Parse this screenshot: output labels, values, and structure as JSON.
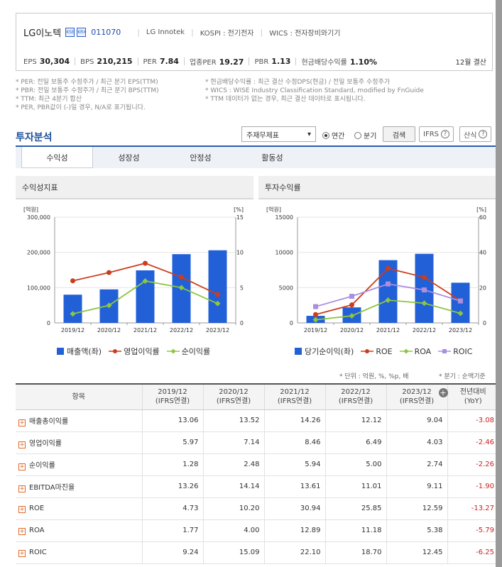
{
  "company": {
    "name": "LG이노텍",
    "badges": [
      "KSE",
      "KRX"
    ],
    "code": "011070",
    "name_en": "LG Innotek",
    "market": "KOSPI : 전기전자",
    "wics": "WICS : 전자장비와기기"
  },
  "metrics": [
    {
      "label": "EPS",
      "value": "30,304"
    },
    {
      "label": "BPS",
      "value": "210,215"
    },
    {
      "label": "PER",
      "value": "7.84"
    },
    {
      "label": "업종PER",
      "value": "19.27"
    },
    {
      "label": "PBR",
      "value": "1.13"
    },
    {
      "label": "현금배당수익률",
      "value": "1.10%"
    }
  ],
  "fiscal": "12월 결산",
  "notes_left": [
    "* PER: 전일 보통주 수정주가 / 최근 분기 EPS(TTM)",
    "* PBR: 전일 보통주 수정주가 / 최근 분기 BPS(TTM)",
    "* TTM: 최근 4분기 합산",
    "* PER, PBR값이 (-)일 경우, N/A로 표기됩니다."
  ],
  "notes_right": [
    "* 현금배당수익률 : 최근 결산 수정DPS(현금) / 전일 보통주 수정주가",
    "* WICS : WISE Industry Classification Standard, modified by FnGuide",
    "* TTM 데이터가 없는 경우, 최근 결산 데이터로 표시됩니다."
  ],
  "analysis": {
    "title": "투자분석",
    "select": "주재무제표",
    "radio_annual": "연간",
    "radio_quarter": "분기",
    "search": "검색",
    "ifrs": "IFRS",
    "formula": "산식"
  },
  "tabs": [
    "수익성",
    "성장성",
    "안정성",
    "활동성"
  ],
  "colors": {
    "bar": "#2260d8",
    "red": "#cc3d1c",
    "green": "#8dc63f",
    "purple": "#a98fe0",
    "accent": "#2d5cad"
  },
  "chart_left_title": "수익성지표",
  "chart_right_title": "투자수익률",
  "chart_data": [
    {
      "type": "bar",
      "categories": [
        "2019/12",
        "2020/12",
        "2021/12",
        "2022/12",
        "2023/12"
      ],
      "y_unit_left": "[억원]",
      "y_unit_right": "[%]",
      "y_ticks_left": [
        "300,000",
        "200,000",
        "100,000",
        "0"
      ],
      "y_ticks_right": [
        "15",
        "10",
        "5",
        "0"
      ],
      "ylim_left": [
        0,
        300000
      ],
      "ylim_right": [
        0,
        15
      ],
      "series": [
        {
          "name": "매출액(좌)",
          "axis": "left",
          "type": "bar",
          "values": [
            80000,
            95000,
            149000,
            195000,
            206000
          ]
        },
        {
          "name": "영업이익률",
          "axis": "right",
          "type": "line",
          "values": [
            5.97,
            7.14,
            8.46,
            6.49,
            4.03
          ]
        },
        {
          "name": "순이익률",
          "axis": "right",
          "type": "line",
          "values": [
            1.28,
            2.48,
            5.94,
            5.0,
            2.74
          ]
        }
      ]
    },
    {
      "type": "bar",
      "categories": [
        "2019/12",
        "2020/12",
        "2021/12",
        "2022/12",
        "2023/12"
      ],
      "y_unit_left": "[억원]",
      "y_unit_right": "[%]",
      "y_ticks_left": [
        "15000",
        "10000",
        "5000",
        "0"
      ],
      "y_ticks_right": [
        "60",
        "40",
        "20",
        "0"
      ],
      "ylim_left": [
        0,
        15000
      ],
      "ylim_right": [
        0,
        60
      ],
      "series": [
        {
          "name": "당기순이익(좌)",
          "axis": "left",
          "type": "bar",
          "values": [
            1000,
            2200,
            8900,
            9800,
            5700
          ]
        },
        {
          "name": "ROE",
          "axis": "right",
          "type": "line",
          "values": [
            4.73,
            10.2,
            30.94,
            25.85,
            12.59
          ]
        },
        {
          "name": "ROA",
          "axis": "right",
          "type": "line",
          "values": [
            1.77,
            4.0,
            12.89,
            11.18,
            5.38
          ]
        },
        {
          "name": "ROIC",
          "axis": "right",
          "type": "line",
          "values": [
            9.24,
            15.09,
            22.1,
            18.7,
            12.45
          ]
        }
      ]
    }
  ],
  "units_note": "* 단위 : 억원, %, %p, 배",
  "basis_note": "* 분기 : 순액기준",
  "table": {
    "header_item": "항목",
    "columns": [
      {
        "year": "2019/12",
        "basis": "(IFRS연결)"
      },
      {
        "year": "2020/12",
        "basis": "(IFRS연결)"
      },
      {
        "year": "2021/12",
        "basis": "(IFRS연결)"
      },
      {
        "year": "2022/12",
        "basis": "(IFRS연결)"
      },
      {
        "year": "2023/12",
        "basis": "(IFRS연결)"
      }
    ],
    "yoy_header": [
      "전년대비",
      "(YoY)"
    ],
    "rows": [
      {
        "label": "매출총이익률",
        "values": [
          "13.06",
          "13.52",
          "14.26",
          "12.12",
          "9.04"
        ],
        "yoy": "-3.08"
      },
      {
        "label": "영업이익률",
        "values": [
          "5.97",
          "7.14",
          "8.46",
          "6.49",
          "4.03"
        ],
        "yoy": "-2.46"
      },
      {
        "label": "순이익률",
        "values": [
          "1.28",
          "2.48",
          "5.94",
          "5.00",
          "2.74"
        ],
        "yoy": "-2.26"
      },
      {
        "label": "EBITDA마진율",
        "values": [
          "13.26",
          "14.14",
          "13.61",
          "11.01",
          "9.11"
        ],
        "yoy": "-1.90"
      },
      {
        "label": "ROE",
        "values": [
          "4.73",
          "10.20",
          "30.94",
          "25.85",
          "12.59"
        ],
        "yoy": "-13.27"
      },
      {
        "label": "ROA",
        "values": [
          "1.77",
          "4.00",
          "12.89",
          "11.18",
          "5.38"
        ],
        "yoy": "-5.79"
      },
      {
        "label": "ROIC",
        "values": [
          "9.24",
          "15.09",
          "22.10",
          "18.70",
          "12.45"
        ],
        "yoy": "-6.25"
      }
    ]
  }
}
